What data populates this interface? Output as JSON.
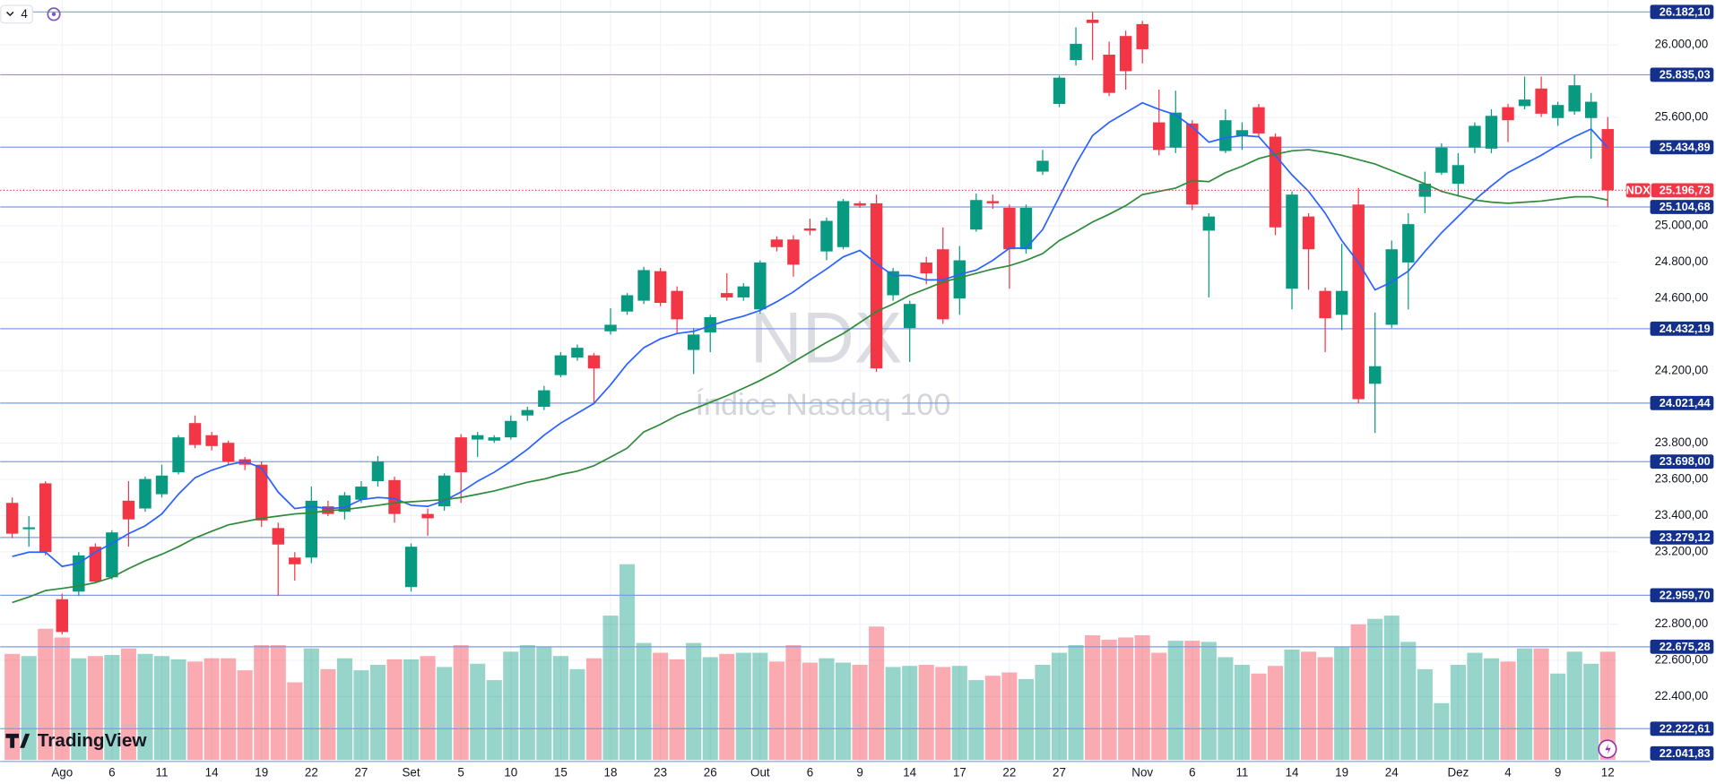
{
  "chart_data": {
    "type": "candlestick",
    "symbol": "NDX",
    "watermark_title": "NDX",
    "watermark_subtitle": "Índice Nasdaq 100",
    "legend_value": "4",
    "brand": "TradingView",
    "up_color": "#089981",
    "down_color": "#f23645",
    "level_color": "#7f9be8",
    "level_label_color": "#13308c",
    "grid": true,
    "categories": [
      null,
      null,
      null,
      "Ago",
      null,
      null,
      "6",
      null,
      null,
      "11",
      null,
      null,
      "14",
      null,
      null,
      "19",
      null,
      null,
      "22",
      null,
      null,
      "27",
      null,
      null,
      "Set",
      null,
      null,
      "5",
      null,
      null,
      "10",
      null,
      null,
      "15",
      null,
      null,
      "18",
      null,
      null,
      "23",
      null,
      null,
      "26",
      null,
      null,
      "Out",
      null,
      null,
      "6",
      null,
      null,
      "9",
      null,
      null,
      "14",
      null,
      null,
      "17",
      null,
      null,
      "22",
      null,
      null,
      "27",
      null,
      null,
      null,
      null,
      "Nov",
      null,
      null,
      "6",
      null,
      null,
      "11",
      null,
      null,
      "14",
      null,
      null,
      "19",
      null,
      null,
      "24",
      null,
      null,
      null,
      "Dez",
      null,
      null,
      "4",
      null,
      null,
      "9",
      null,
      null,
      "12"
    ],
    "open": [
      23470,
      23325,
      23578,
      22938,
      22980,
      23228,
      23059,
      23482,
      23439,
      23518,
      23639,
      23911,
      23844,
      23802,
      23711,
      23681,
      23331,
      23168,
      23168,
      23451,
      23421,
      23488,
      23590,
      23596,
      23005,
      23409,
      23451,
      23832,
      23820,
      23814,
      23832,
      23953,
      24001,
      24176,
      24273,
      24285,
      24418,
      24527,
      24587,
      24750,
      24641,
      24315,
      24412,
      24629,
      24605,
      24539,
      24925,
      24925,
      24986,
      24859,
      24883,
      25125,
      25125,
      24617,
      24436,
      24798,
      24871,
      24599,
      24980,
      25137,
      25100,
      24871,
      25300,
      25674,
      25916,
      26139,
      25946,
      26049,
      26115,
      25572,
      25433,
      25566,
      24974,
      25414,
      25499,
      25656,
      25493,
      24653,
      25052,
      24641,
      24509,
      25118,
      24128,
      24454,
      24798,
      25161,
      25294,
      25233,
      25433,
      25427,
      25656,
      25662,
      25759,
      25596,
      25632,
      25596,
      25535
    ],
    "high": [
      23500,
      23397,
      23590,
      22968,
      23198,
      23246,
      23319,
      23590,
      23615,
      23681,
      23844,
      23953,
      23862,
      23814,
      23723,
      23699,
      23361,
      23198,
      23560,
      23482,
      23530,
      23590,
      23729,
      23615,
      23246,
      23439,
      23633,
      23850,
      23862,
      23844,
      23953,
      24001,
      24116,
      24303,
      24345,
      24297,
      24545,
      24629,
      24774,
      24768,
      24666,
      24436,
      24509,
      24738,
      24684,
      24810,
      24943,
      24949,
      25040,
      25046,
      25149,
      25137,
      25173,
      24768,
      24587,
      24829,
      24992,
      24889,
      25179,
      25173,
      25118,
      25118,
      25420,
      25831,
      26097,
      26182,
      26018,
      26079,
      26133,
      25753,
      25747,
      25584,
      25070,
      25644,
      25572,
      25674,
      25511,
      25191,
      25070,
      24660,
      24901,
      25209,
      24521,
      24919,
      25070,
      25300,
      25457,
      25402,
      25572,
      25644,
      25674,
      25825,
      25825,
      25686,
      25837,
      25735,
      25602
    ],
    "low": [
      23275,
      23228,
      23180,
      22745,
      22956,
      23029,
      23047,
      23228,
      23421,
      23500,
      23627,
      23772,
      23760,
      23681,
      23651,
      23337,
      22956,
      23041,
      23137,
      23397,
      23379,
      23470,
      23560,
      23361,
      22980,
      23288,
      23427,
      23470,
      23723,
      23802,
      23820,
      23923,
      23983,
      24164,
      24255,
      24013,
      24400,
      24509,
      24569,
      24557,
      24406,
      24182,
      24303,
      24587,
      24587,
      24515,
      24859,
      24720,
      24949,
      24810,
      24871,
      25100,
      24194,
      24587,
      24249,
      24678,
      24460,
      24509,
      24968,
      25094,
      24653,
      24847,
      25282,
      25656,
      25886,
      25916,
      25717,
      25753,
      25898,
      25390,
      25402,
      25088,
      24605,
      25402,
      25420,
      25493,
      24949,
      24539,
      24647,
      24303,
      24424,
      24021,
      23856,
      24436,
      24539,
      25070,
      25282,
      25161,
      25402,
      25402,
      25463,
      25644,
      25602,
      25553,
      25614,
      25372,
      25105
    ],
    "close": [
      23300,
      23335,
      23198,
      22757,
      23180,
      23035,
      23307,
      23379,
      23602,
      23621,
      23832,
      23790,
      23784,
      23699,
      23681,
      23373,
      23240,
      23131,
      23482,
      23409,
      23512,
      23560,
      23699,
      23409,
      23228,
      23385,
      23621,
      23639,
      23844,
      23832,
      23923,
      23983,
      24092,
      24285,
      24327,
      24213,
      24454,
      24617,
      24756,
      24575,
      24484,
      24400,
      24496,
      24605,
      24666,
      24798,
      24883,
      24786,
      24974,
      25028,
      25137,
      25112,
      24213,
      24750,
      24569,
      24738,
      24484,
      24810,
      25143,
      25125,
      24871,
      25100,
      25360,
      25819,
      26006,
      26121,
      25735,
      25855,
      25976,
      25420,
      25626,
      25118,
      25052,
      25584,
      25529,
      25511,
      24992,
      25173,
      24871,
      24490,
      24641,
      24043,
      24225,
      24871,
      25010,
      25233,
      25433,
      25336,
      25553,
      25608,
      25584,
      25698,
      25620,
      25668,
      25777,
      25686,
      25196.73
    ],
    "volume": [
      97,
      95,
      120,
      112,
      93,
      95,
      96,
      102,
      97,
      95,
      92,
      90,
      93,
      93,
      82,
      105,
      105,
      71,
      102,
      83,
      93,
      82,
      87,
      92,
      92,
      95,
      85,
      105,
      88,
      73,
      99,
      105,
      103,
      95,
      83,
      93,
      132,
      179,
      107,
      98,
      92,
      107,
      94,
      97,
      98,
      98,
      90,
      105,
      89,
      93,
      89,
      87,
      122,
      85,
      86,
      87,
      85,
      86,
      73,
      77,
      80,
      74,
      87,
      98,
      105,
      114,
      110,
      112,
      114,
      98,
      109,
      109,
      108,
      94,
      87,
      79,
      86,
      101,
      99,
      94,
      103,
      124,
      129,
      132,
      108,
      83,
      52,
      87,
      98,
      93,
      90,
      102,
      102,
      79,
      99,
      88,
      99
    ],
    "overlays": [
      {
        "color": "#2962ff",
        "values": [
          23174,
          23198,
          23198,
          23119,
          23137,
          23198,
          23246,
          23300,
          23343,
          23409,
          23518,
          23609,
          23651,
          23681,
          23699,
          23663,
          23530,
          23439,
          23451,
          23439,
          23445,
          23488,
          23500,
          23494,
          23457,
          23451,
          23482,
          23530,
          23590,
          23639,
          23699,
          23766,
          23844,
          23911,
          23965,
          24019,
          24122,
          24237,
          24327,
          24376,
          24406,
          24418,
          24448,
          24478,
          24502,
          24533,
          24581,
          24635,
          24702,
          24762,
          24829,
          24865,
          24792,
          24726,
          24726,
          24702,
          24702,
          24732,
          24756,
          24810,
          24877,
          24877,
          24980,
          25161,
          25342,
          25499,
          25572,
          25626,
          25680,
          25644,
          25614,
          25547,
          25463,
          25487,
          25499,
          25493,
          25390,
          25282,
          25191,
          25070,
          24919,
          24798,
          24647,
          24690,
          24750,
          24859,
          24962,
          25052,
          25143,
          25221,
          25294,
          25342,
          25390,
          25445,
          25493,
          25535,
          25433
        ]
      },
      {
        "color": "#2e8b3a",
        "values": [
          22920,
          22950,
          22986,
          22998,
          23011,
          23029,
          23059,
          23107,
          23150,
          23186,
          23228,
          23276,
          23313,
          23349,
          23367,
          23385,
          23397,
          23409,
          23415,
          23427,
          23433,
          23445,
          23457,
          23470,
          23476,
          23482,
          23488,
          23500,
          23518,
          23536,
          23560,
          23584,
          23602,
          23627,
          23645,
          23675,
          23723,
          23772,
          23862,
          23904,
          23953,
          23989,
          24025,
          24062,
          24104,
          24146,
          24194,
          24249,
          24303,
          24357,
          24406,
          24466,
          24527,
          24569,
          24617,
          24653,
          24690,
          24714,
          24738,
          24762,
          24780,
          24810,
          24847,
          24919,
          24968,
          25022,
          25064,
          25112,
          25173,
          25191,
          25209,
          25251,
          25245,
          25294,
          25330,
          25372,
          25396,
          25415,
          25421,
          25408,
          25390,
          25366,
          25342,
          25306,
          25270,
          25233,
          25191,
          25167,
          25143,
          25131,
          25125,
          25131,
          25137,
          25149,
          25161,
          25161,
          25143
        ]
      }
    ],
    "ylim": [
      22038,
      26248
    ],
    "yticks": [
      {
        "value": 26000,
        "label": "26.000,00"
      },
      {
        "value": 25600,
        "label": "25.600,00"
      },
      {
        "value": 25000,
        "label": "25.000,00"
      },
      {
        "value": 24800,
        "label": "24.800,00"
      },
      {
        "value": 24600,
        "label": "24.600,00"
      },
      {
        "value": 24200,
        "label": "24.200,00"
      },
      {
        "value": 23800,
        "label": "23.800,00"
      },
      {
        "value": 23600,
        "label": "23.600,00"
      },
      {
        "value": 23400,
        "label": "23.400,00"
      },
      {
        "value": 23200,
        "label": "23.200,00"
      },
      {
        "value": 22800,
        "label": "22.800,00"
      },
      {
        "value": 22600,
        "label": "22.600,00"
      },
      {
        "value": 22400,
        "label": "22.400,00"
      }
    ],
    "levels": [
      {
        "value": 26182.1,
        "label": "26.182,10"
      },
      {
        "value": 25835.03,
        "label": "25.835,03"
      },
      {
        "value": 25434.89,
        "label": "25.434,89"
      },
      {
        "value": 25104.68,
        "label": "25.104,68"
      },
      {
        "value": 24432.19,
        "label": "24.432,19"
      },
      {
        "value": 24021.44,
        "label": "24.021,44"
      },
      {
        "value": 23698.0,
        "label": "23.698,00"
      },
      {
        "value": 23279.12,
        "label": "23.279,12"
      },
      {
        "value": 22959.7,
        "label": "22.959,70"
      },
      {
        "value": 22675.28,
        "label": "22.675,28"
      },
      {
        "value": 22222.61,
        "label": "22.222,61"
      },
      {
        "value": 22041.83,
        "label": "22.041,83"
      }
    ],
    "last_price": {
      "value": 25196.73,
      "label": "25.196,73"
    }
  }
}
